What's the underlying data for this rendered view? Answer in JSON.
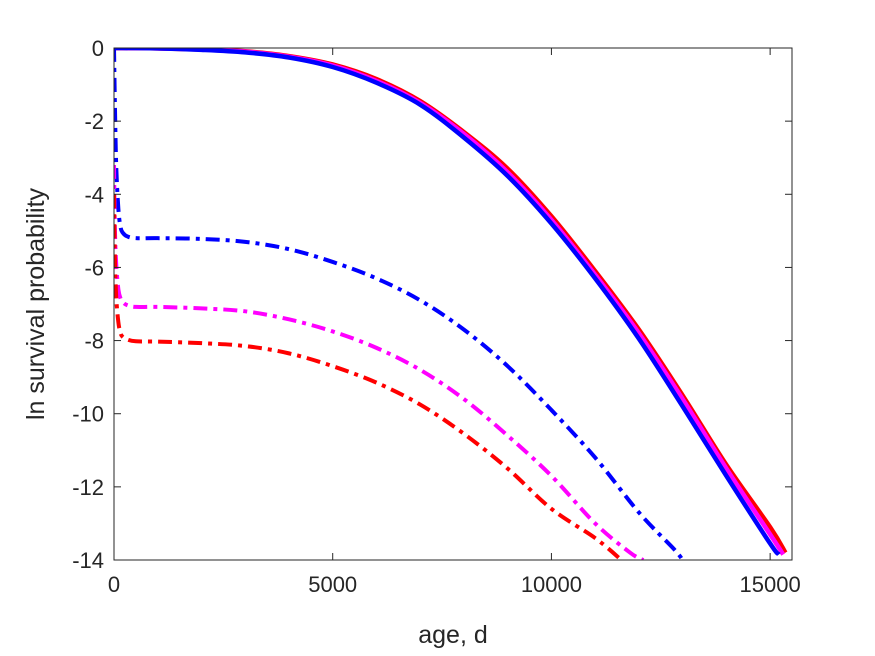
{
  "chart_data": {
    "type": "line",
    "title": "",
    "xlabel": "age, d",
    "ylabel": "ln survival probability",
    "xlim": [
      0,
      15500
    ],
    "ylim": [
      -14,
      0
    ],
    "xticks": [
      0,
      5000,
      10000,
      15000
    ],
    "xtick_labels": [
      "0",
      "5000",
      "10000",
      "15000"
    ],
    "yticks": [
      0,
      -2,
      -4,
      -6,
      -8,
      -10,
      -12,
      -14
    ],
    "ytick_labels": [
      "0",
      "-2",
      "-4",
      "-6",
      "-8",
      "-10",
      "-12",
      "-14"
    ],
    "grid": false,
    "legend": null,
    "series": [
      {
        "color": "#ff0000",
        "style": "solid",
        "x": [
          0,
          1000,
          2000,
          3000,
          4000,
          5000,
          6000,
          7000,
          8000,
          9000,
          10000,
          11000,
          12000,
          13000,
          14000,
          15000,
          15350
        ],
        "y": [
          0,
          -0.01,
          -0.04,
          -0.09,
          -0.22,
          -0.45,
          -0.85,
          -1.45,
          -2.3,
          -3.3,
          -4.6,
          -6.1,
          -7.7,
          -9.5,
          -11.4,
          -13.1,
          -13.8
        ]
      },
      {
        "color": "#ff00ff",
        "style": "solid",
        "x": [
          0,
          1000,
          2000,
          3000,
          4000,
          5000,
          6000,
          7000,
          8000,
          9000,
          10000,
          11000,
          12000,
          13000,
          14000,
          15000,
          15300
        ],
        "y": [
          0,
          -0.01,
          -0.04,
          -0.1,
          -0.24,
          -0.48,
          -0.9,
          -1.5,
          -2.35,
          -3.4,
          -4.7,
          -6.2,
          -7.8,
          -9.6,
          -11.5,
          -13.3,
          -13.85
        ]
      },
      {
        "color": "#0000ff",
        "style": "solid",
        "x": [
          0,
          1000,
          2000,
          3000,
          4000,
          5000,
          6000,
          7000,
          8000,
          9000,
          10000,
          11000,
          12000,
          13000,
          14000,
          15000,
          15200
        ],
        "y": [
          0,
          -0.01,
          -0.05,
          -0.12,
          -0.26,
          -0.52,
          -0.95,
          -1.55,
          -2.45,
          -3.5,
          -4.8,
          -6.3,
          -7.95,
          -9.8,
          -11.7,
          -13.55,
          -13.85
        ]
      },
      {
        "color": "#0000ff",
        "style": "dashdot",
        "x": [
          0,
          20,
          50,
          100,
          150,
          200,
          300,
          500,
          1000,
          2000,
          3000,
          4000,
          5000,
          6000,
          7000,
          8000,
          9000,
          10000,
          11000,
          12000,
          12800,
          13000
        ],
        "y": [
          0,
          -1.5,
          -3.2,
          -4.4,
          -4.9,
          -5.05,
          -5.15,
          -5.2,
          -5.2,
          -5.22,
          -5.3,
          -5.5,
          -5.85,
          -6.3,
          -6.9,
          -7.7,
          -8.7,
          -9.9,
          -11.2,
          -12.7,
          -13.7,
          -14
        ]
      },
      {
        "color": "#ff00ff",
        "style": "dashdot",
        "x": [
          0,
          20,
          50,
          100,
          150,
          200,
          300,
          500,
          1000,
          2000,
          3000,
          4000,
          5000,
          6000,
          7000,
          8000,
          9000,
          10000,
          11000,
          11800,
          12100
        ],
        "y": [
          -3.2,
          -4.9,
          -5.9,
          -6.6,
          -6.85,
          -6.95,
          -7.03,
          -7.08,
          -7.08,
          -7.12,
          -7.2,
          -7.42,
          -7.75,
          -8.2,
          -8.8,
          -9.6,
          -10.6,
          -11.7,
          -13.0,
          -13.8,
          -14
        ]
      },
      {
        "color": "#ff0000",
        "style": "dashdot",
        "x": [
          0,
          20,
          50,
          100,
          150,
          200,
          300,
          500,
          1000,
          2000,
          3000,
          4000,
          5000,
          6000,
          7000,
          8000,
          9000,
          10000,
          11000,
          11600
        ],
        "y": [
          -4.0,
          -5.7,
          -6.8,
          -7.5,
          -7.8,
          -7.9,
          -7.97,
          -8.02,
          -8.03,
          -8.07,
          -8.15,
          -8.35,
          -8.7,
          -9.15,
          -9.75,
          -10.55,
          -11.5,
          -12.6,
          -13.4,
          -14
        ]
      }
    ]
  }
}
